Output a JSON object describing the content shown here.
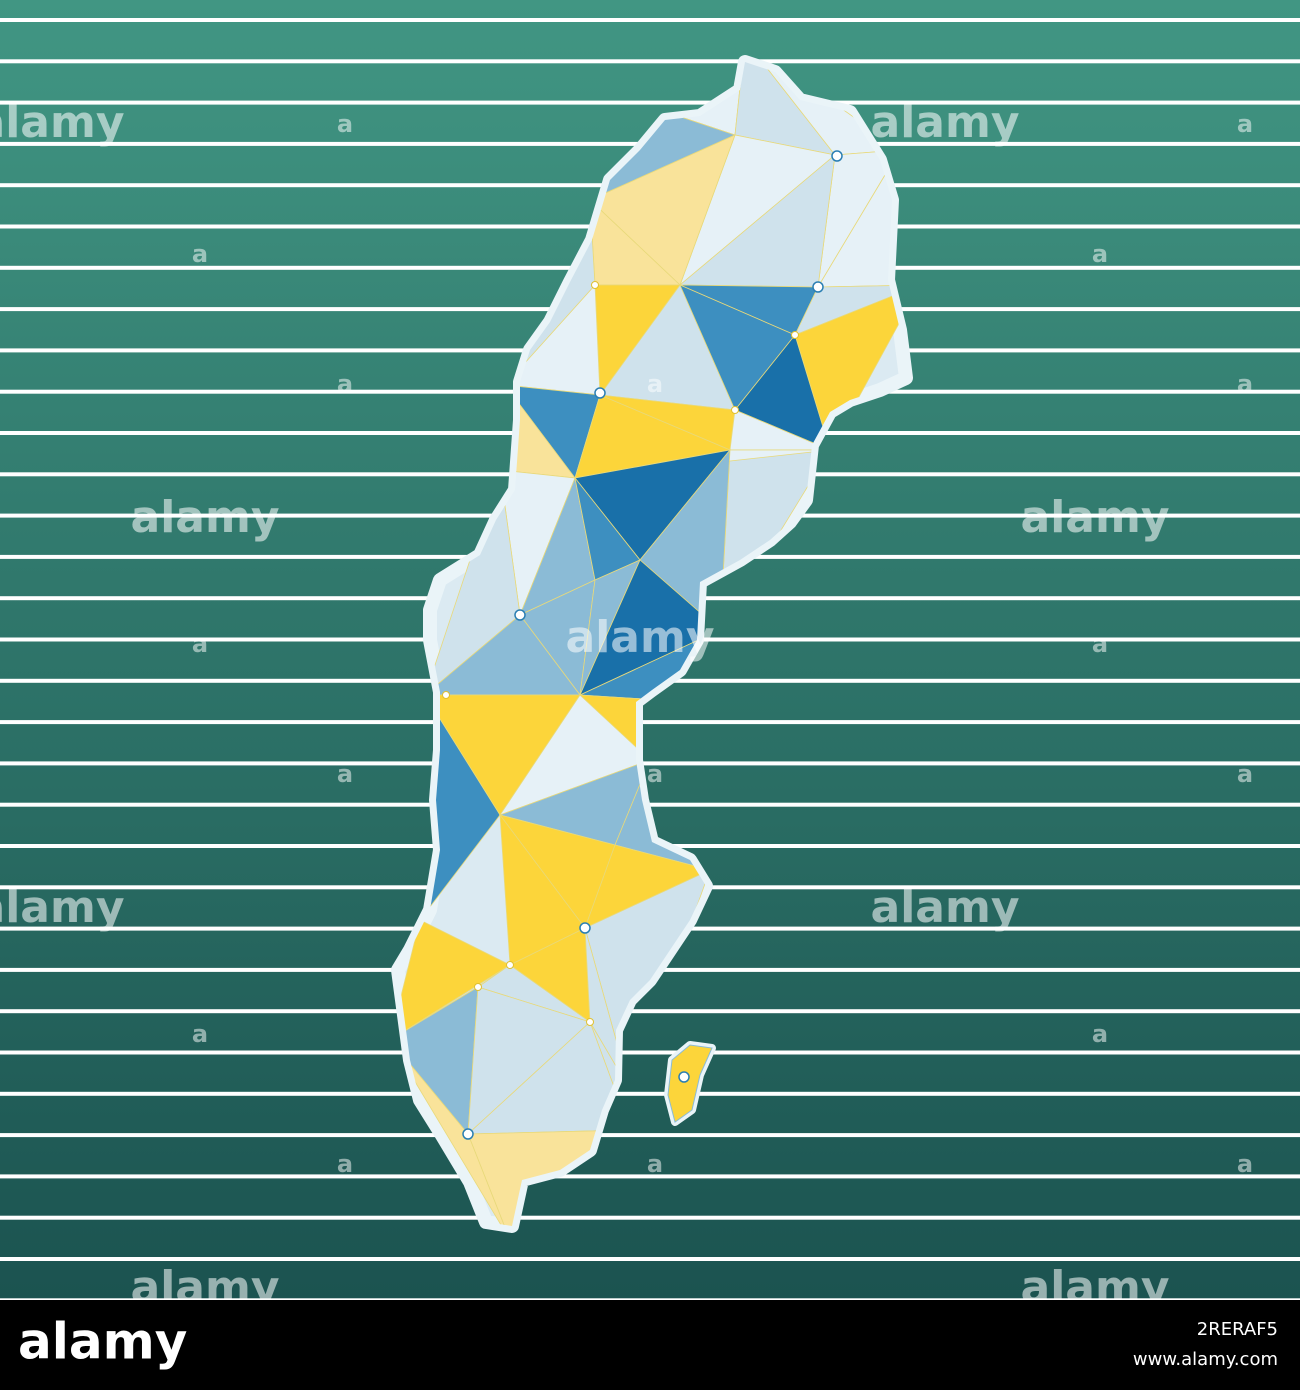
{
  "watermark": "alamy",
  "watermark_mark": "a",
  "footer": {
    "logo": "alamy",
    "image_id": "2RERAF5",
    "url": "www.alamy.com"
  }
}
